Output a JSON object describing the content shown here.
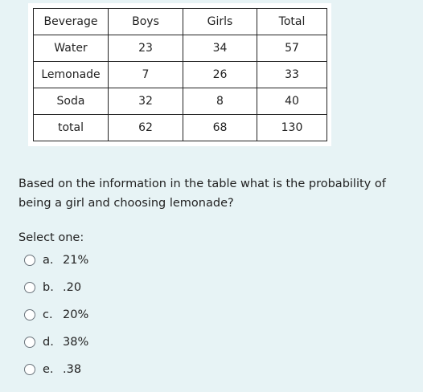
{
  "table": {
    "header": [
      "Beverage",
      "Boys",
      "Girls",
      "Total"
    ],
    "rows": [
      [
        "Water",
        "23",
        "34",
        "57"
      ],
      [
        "Lemonade",
        "7",
        "26",
        "33"
      ],
      [
        "Soda",
        "32",
        "8",
        "40"
      ],
      [
        "total",
        "62",
        "68",
        "130"
      ]
    ]
  },
  "question": "Based on the information in the table what is the probability of being a girl and choosing lemonade?",
  "prompt": "Select one:",
  "options": [
    {
      "letter": "a.",
      "text": "21%"
    },
    {
      "letter": "b.",
      "text": ".20"
    },
    {
      "letter": "c.",
      "text": "20%"
    },
    {
      "letter": "d.",
      "text": "38%"
    },
    {
      "letter": "e.",
      "text": ".38"
    }
  ]
}
